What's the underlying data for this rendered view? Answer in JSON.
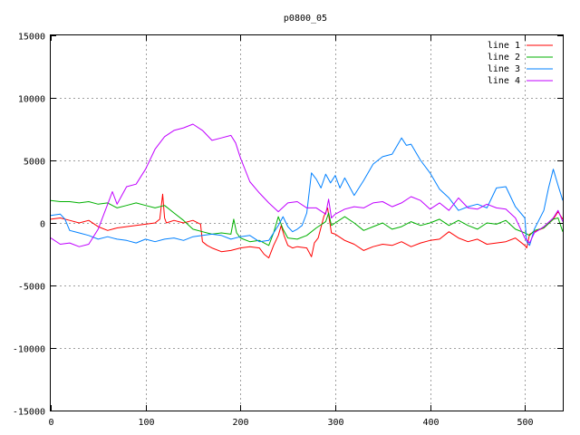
{
  "chart_data": {
    "type": "line",
    "title": "p0800_05",
    "xlabel": "",
    "ylabel": "",
    "xlim": [
      0,
      540
    ],
    "ylim": [
      -15000,
      15000
    ],
    "xticks": [
      0,
      100,
      200,
      300,
      400,
      500
    ],
    "yticks": [
      -15000,
      -10000,
      -5000,
      0,
      5000,
      10000,
      15000
    ],
    "grid": true,
    "legend_position": "top-right",
    "series": [
      {
        "name": "line 1",
        "color": "#ff0000",
        "x": [
          0,
          10,
          20,
          30,
          40,
          50,
          60,
          70,
          80,
          90,
          100,
          110,
          115,
          118,
          120,
          122,
          130,
          140,
          150,
          158,
          160,
          165,
          170,
          180,
          190,
          200,
          210,
          220,
          225,
          230,
          235,
          240,
          243,
          246,
          250,
          255,
          260,
          270,
          275,
          278,
          282,
          288,
          292,
          296,
          300,
          310,
          320,
          330,
          340,
          350,
          360,
          370,
          380,
          390,
          400,
          410,
          420,
          430,
          440,
          450,
          460,
          470,
          480,
          490,
          500,
          502,
          505,
          510,
          520,
          530,
          535,
          540
        ],
        "y": [
          300,
          400,
          200,
          0,
          200,
          -300,
          -600,
          -400,
          -300,
          -200,
          -100,
          0,
          300,
          2300,
          400,
          0,
          200,
          0,
          200,
          -100,
          -1500,
          -1800,
          -2000,
          -2300,
          -2200,
          -2000,
          -1900,
          -2000,
          -2500,
          -2800,
          -1800,
          -1000,
          -200,
          -1000,
          -1800,
          -2000,
          -1900,
          -2000,
          -2700,
          -1600,
          -1200,
          500,
          1200,
          -800,
          -900,
          -1400,
          -1700,
          -2200,
          -1900,
          -1700,
          -1800,
          -1500,
          -1900,
          -1600,
          -1400,
          -1300,
          -700,
          -1200,
          -1500,
          -1300,
          -1700,
          -1600,
          -1500,
          -1200,
          -1800,
          -2000,
          -900,
          -700,
          -400,
          300,
          900,
          300
        ]
      },
      {
        "name": "line 2",
        "color": "#00b000",
        "x": [
          0,
          10,
          20,
          30,
          40,
          50,
          60,
          70,
          80,
          90,
          100,
          110,
          120,
          130,
          140,
          150,
          160,
          170,
          180,
          190,
          193,
          196,
          200,
          210,
          220,
          230,
          235,
          240,
          245,
          250,
          260,
          270,
          280,
          290,
          293,
          296,
          300,
          310,
          320,
          330,
          340,
          350,
          360,
          370,
          380,
          390,
          400,
          410,
          420,
          430,
          440,
          450,
          460,
          470,
          480,
          490,
          500,
          505,
          510,
          520,
          530,
          535,
          540
        ],
        "y": [
          1800,
          1700,
          1700,
          1600,
          1700,
          1500,
          1600,
          1200,
          1400,
          1600,
          1400,
          1200,
          1400,
          800,
          200,
          -500,
          -700,
          -900,
          -800,
          -900,
          300,
          -800,
          -1200,
          -1500,
          -1400,
          -1800,
          -800,
          500,
          -500,
          -1200,
          -1300,
          -1000,
          -400,
          100,
          800,
          -200,
          0,
          500,
          0,
          -600,
          -300,
          0,
          -500,
          -300,
          100,
          -200,
          0,
          300,
          -200,
          200,
          -200,
          -500,
          0,
          -100,
          200,
          -500,
          -800,
          -1000,
          -600,
          -400,
          300,
          400,
          -700
        ]
      },
      {
        "name": "line 3",
        "color": "#0080ff",
        "x": [
          0,
          10,
          15,
          20,
          30,
          40,
          50,
          60,
          70,
          80,
          90,
          100,
          110,
          120,
          130,
          140,
          150,
          160,
          170,
          180,
          190,
          200,
          210,
          220,
          230,
          240,
          245,
          250,
          255,
          260,
          265,
          270,
          275,
          280,
          285,
          290,
          295,
          300,
          305,
          310,
          320,
          330,
          340,
          350,
          360,
          370,
          375,
          380,
          390,
          400,
          410,
          420,
          430,
          440,
          450,
          460,
          470,
          480,
          490,
          500,
          502,
          505,
          510,
          520,
          525,
          530,
          535,
          540
        ],
        "y": [
          600,
          700,
          300,
          -600,
          -800,
          -1000,
          -1300,
          -1100,
          -1300,
          -1400,
          -1600,
          -1300,
          -1500,
          -1300,
          -1200,
          -1400,
          -1100,
          -1000,
          -900,
          -1000,
          -1300,
          -1100,
          -1000,
          -1500,
          -1400,
          -200,
          500,
          -300,
          -700,
          -500,
          -200,
          800,
          4000,
          3500,
          2800,
          3900,
          3200,
          3800,
          2800,
          3600,
          2200,
          3400,
          4700,
          5300,
          5500,
          6800,
          6200,
          6300,
          5000,
          4000,
          2700,
          2000,
          1000,
          1300,
          1500,
          1200,
          2800,
          2900,
          1300,
          400,
          -1500,
          -1800,
          -500,
          1000,
          2800,
          4300,
          3000,
          1800
        ]
      },
      {
        "name": "line 4",
        "color": "#c000ff",
        "x": [
          0,
          10,
          20,
          30,
          40,
          50,
          60,
          65,
          70,
          80,
          90,
          100,
          110,
          120,
          130,
          140,
          150,
          160,
          170,
          180,
          190,
          195,
          200,
          210,
          220,
          230,
          240,
          250,
          260,
          270,
          280,
          290,
          293,
          296,
          300,
          310,
          320,
          330,
          340,
          350,
          360,
          370,
          380,
          390,
          400,
          410,
          420,
          430,
          440,
          450,
          460,
          470,
          480,
          490,
          500,
          505,
          510,
          520,
          530,
          535,
          540
        ],
        "y": [
          -1200,
          -1700,
          -1600,
          -1900,
          -1700,
          -500,
          1500,
          2500,
          1500,
          2900,
          3100,
          4300,
          5900,
          6900,
          7400,
          7600,
          7900,
          7400,
          6600,
          6800,
          7000,
          6400,
          5200,
          3300,
          2400,
          1600,
          900,
          1600,
          1700,
          1200,
          1200,
          700,
          1900,
          400,
          700,
          1100,
          1300,
          1200,
          1600,
          1700,
          1300,
          1600,
          2100,
          1800,
          1100,
          1600,
          1000,
          2000,
          1200,
          1100,
          1500,
          1200,
          1100,
          400,
          -1200,
          -1600,
          -800,
          -300,
          400,
          1000,
          100
        ]
      }
    ]
  }
}
